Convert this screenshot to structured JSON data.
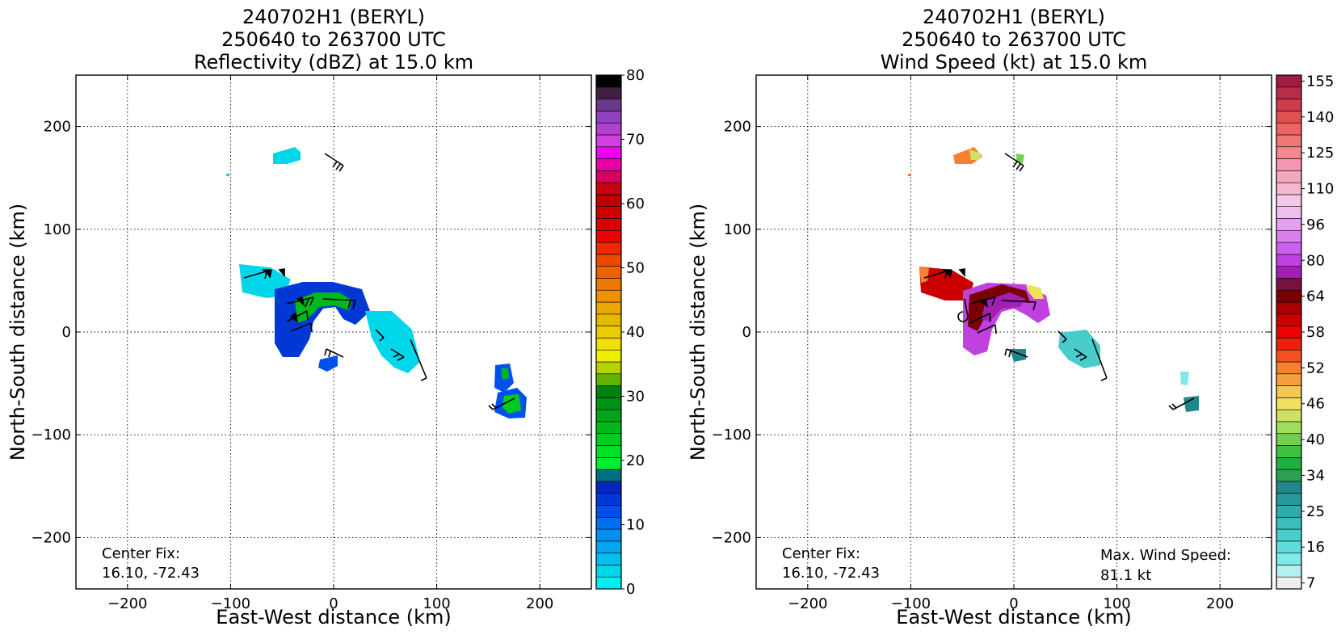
{
  "chart_data": [
    {
      "type": "heatmap",
      "title": [
        "240702H1 (BERYL)",
        "250640 to 263700 UTC",
        "Reflectivity (dBZ) at 15.0 km"
      ],
      "xlabel": "East-West distance (km)",
      "ylabel": "North-South distance (km)",
      "xlim": [
        -250,
        250
      ],
      "ylim": [
        -250,
        250
      ],
      "xticks": [
        -200,
        -100,
        0,
        100,
        200
      ],
      "yticks": [
        -200,
        -100,
        0,
        100,
        200
      ],
      "xtick_labels": [
        "−200",
        "−100",
        "0",
        "100",
        "200"
      ],
      "ytick_labels": [
        "−200",
        "−100",
        "0",
        "100",
        "200"
      ],
      "grid": "dotted",
      "colorbar": {
        "min": 0,
        "max": 80,
        "ticks": [
          0,
          10,
          20,
          30,
          40,
          50,
          60,
          70,
          80
        ],
        "tick_labels": [
          "0",
          "10",
          "20",
          "30",
          "40",
          "50",
          "60",
          "70",
          "80"
        ],
        "colors": [
          "#00eeee",
          "#00d6ea",
          "#00c0ee",
          "#00a6ee",
          "#0090ee",
          "#0070ee",
          "#0050ee",
          "#0038d6",
          "#0028c0",
          "#007080",
          "#00ee30",
          "#00e028",
          "#00cc20",
          "#00b81c",
          "#00a418",
          "#009014",
          "#008010",
          "#60b400",
          "#b4d200",
          "#eeee00",
          "#f0e000",
          "#eacc00",
          "#e4b800",
          "#eaa800",
          "#ee9000",
          "#ee7800",
          "#ee6000",
          "#ee4800",
          "#ee2800",
          "#ee0000",
          "#dc0000",
          "#cc0000",
          "#c00000",
          "#c80010",
          "#d80060",
          "#e800a0",
          "#ee00ee",
          "#d040e0",
          "#b040d0",
          "#9040c0",
          "#6a3a8a",
          "#402040",
          "#000000"
        ]
      },
      "annotations": {
        "center_fix_label": "Center Fix:",
        "center_fix_value": "16.10, -72.43"
      },
      "echo_regions": [
        {
          "x": 10,
          "y": 20,
          "value": 25
        },
        {
          "x": -35,
          "y": 0,
          "value": 12
        },
        {
          "x": 70,
          "y": -10,
          "value": 4
        },
        {
          "x": -60,
          "y": 45,
          "value": 3
        },
        {
          "x": -40,
          "y": 170,
          "value": 4
        },
        {
          "x": 165,
          "y": -45,
          "value": 14
        },
        {
          "x": 175,
          "y": -70,
          "value": 22
        },
        {
          "x": -5,
          "y": -32,
          "value": 10
        }
      ]
    },
    {
      "type": "heatmap",
      "title": [
        "240702H1 (BERYL)",
        "250640 to 263700 UTC",
        "Wind Speed (kt) at 15.0 km"
      ],
      "xlabel": "East-West distance (km)",
      "ylabel": "North-South distance (km)",
      "xlim": [
        -250,
        250
      ],
      "ylim": [
        -250,
        250
      ],
      "xticks": [
        -200,
        -100,
        0,
        100,
        200
      ],
      "yticks": [
        -200,
        -100,
        0,
        100,
        200
      ],
      "xtick_labels": [
        "−200",
        "−100",
        "0",
        "100",
        "200"
      ],
      "ytick_labels": [
        "−200",
        "−100",
        "0",
        "100",
        "200"
      ],
      "grid": "dotted",
      "colorbar": {
        "ticks": [
          "7",
          "16",
          "25",
          "34",
          "40",
          "46",
          "52",
          "58",
          "64",
          "80",
          "96",
          "110",
          "125",
          "140",
          "155"
        ],
        "tick_positions": [
          0.5,
          3.5,
          6.5,
          9.5,
          12.5,
          15.5,
          18.5,
          21.5,
          24.5,
          27.5,
          30.5,
          33.5,
          36.5,
          39.5,
          42.5
        ],
        "n_bins": 43,
        "colors": [
          "#eeeeee",
          "#b4f0f0",
          "#80eaea",
          "#60dcdc",
          "#48cccc",
          "#3cbcbc",
          "#30aaaa",
          "#28989c",
          "#20888c",
          "#2ca050",
          "#20b040",
          "#40c040",
          "#70d050",
          "#a0dc60",
          "#d0e060",
          "#f0e060",
          "#f4c850",
          "#f4a040",
          "#f48030",
          "#f45020",
          "#ee2010",
          "#ee0000",
          "#cc0000",
          "#aa0000",
          "#7a0000",
          "#7a1040",
          "#a020b0",
          "#c040e0",
          "#cc60ee",
          "#d880ee",
          "#e4a0ee",
          "#eec0ee",
          "#f4c8e8",
          "#f4b8d0",
          "#f4a8c0",
          "#f496b0",
          "#f48890",
          "#f07878",
          "#ee6464",
          "#e05050",
          "#cc3c4c",
          "#b82c48",
          "#a01c44"
        ]
      },
      "annotations": {
        "center_fix_label": "Center Fix:",
        "center_fix_value": "16.10, -72.43",
        "max_wind_label": "Max. Wind Speed:",
        "max_wind_value": "81.1 kt"
      },
      "echo_regions": [
        {
          "x": -10,
          "y": 15,
          "value": 75
        },
        {
          "x": -75,
          "y": 45,
          "value": 58
        },
        {
          "x": 65,
          "y": -15,
          "value": 20
        },
        {
          "x": -40,
          "y": 170,
          "value": 50
        },
        {
          "x": 170,
          "y": -60,
          "value": 22
        }
      ]
    }
  ]
}
